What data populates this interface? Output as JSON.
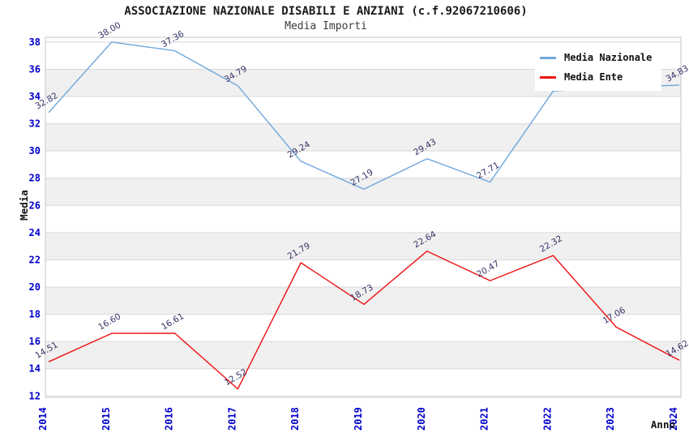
{
  "chart_data": {
    "type": "line",
    "title": "ASSOCIAZIONE NAZIONALE DISABILI E ANZIANI (c.f.92067210606)",
    "subtitle": "Media Importi",
    "xlabel": "Anno",
    "ylabel": "Media",
    "x": [
      2014,
      2015,
      2016,
      2017,
      2018,
      2019,
      2020,
      2021,
      2022,
      2023,
      2024
    ],
    "series": [
      {
        "name": "Media Nazionale",
        "color": "#6fa8dc",
        "values": [
          32.82,
          38.0,
          37.36,
          34.79,
          29.24,
          27.19,
          29.43,
          27.71,
          34.4,
          34.7,
          34.83
        ],
        "point_labels": [
          "32.82",
          "38.00",
          "37.36",
          "34.79",
          "29.24",
          "27.19",
          "29.43",
          "27.71",
          "",
          "",
          "34.83"
        ]
      },
      {
        "name": "Media Ente",
        "color": "#ee1111",
        "values": [
          14.51,
          16.6,
          16.61,
          12.52,
          21.79,
          18.73,
          22.64,
          20.47,
          22.32,
          17.06,
          14.62
        ],
        "point_labels": [
          "14.51",
          "16.60",
          "16.61",
          "12.52",
          "21.79",
          "18.73",
          "22.64",
          "20.47",
          "22.32",
          "17.06",
          "14.62"
        ]
      }
    ],
    "ylim": [
      11.9,
      38.35
    ],
    "yticks": [
      12,
      14,
      16,
      18,
      20,
      22,
      24,
      26,
      28,
      30,
      32,
      34,
      36,
      38
    ],
    "grid": true,
    "legend_position": "top-right",
    "colors": {
      "tick_label": "#0000cc",
      "point_label": "#333366",
      "band_alt": "#f0f0f0",
      "gridline": "#d9d9d9",
      "plot_border": "#c6c6c6",
      "axis_title": "#111111",
      "title": "#1a1a1a",
      "subtitle": "#3c3c3c"
    }
  }
}
